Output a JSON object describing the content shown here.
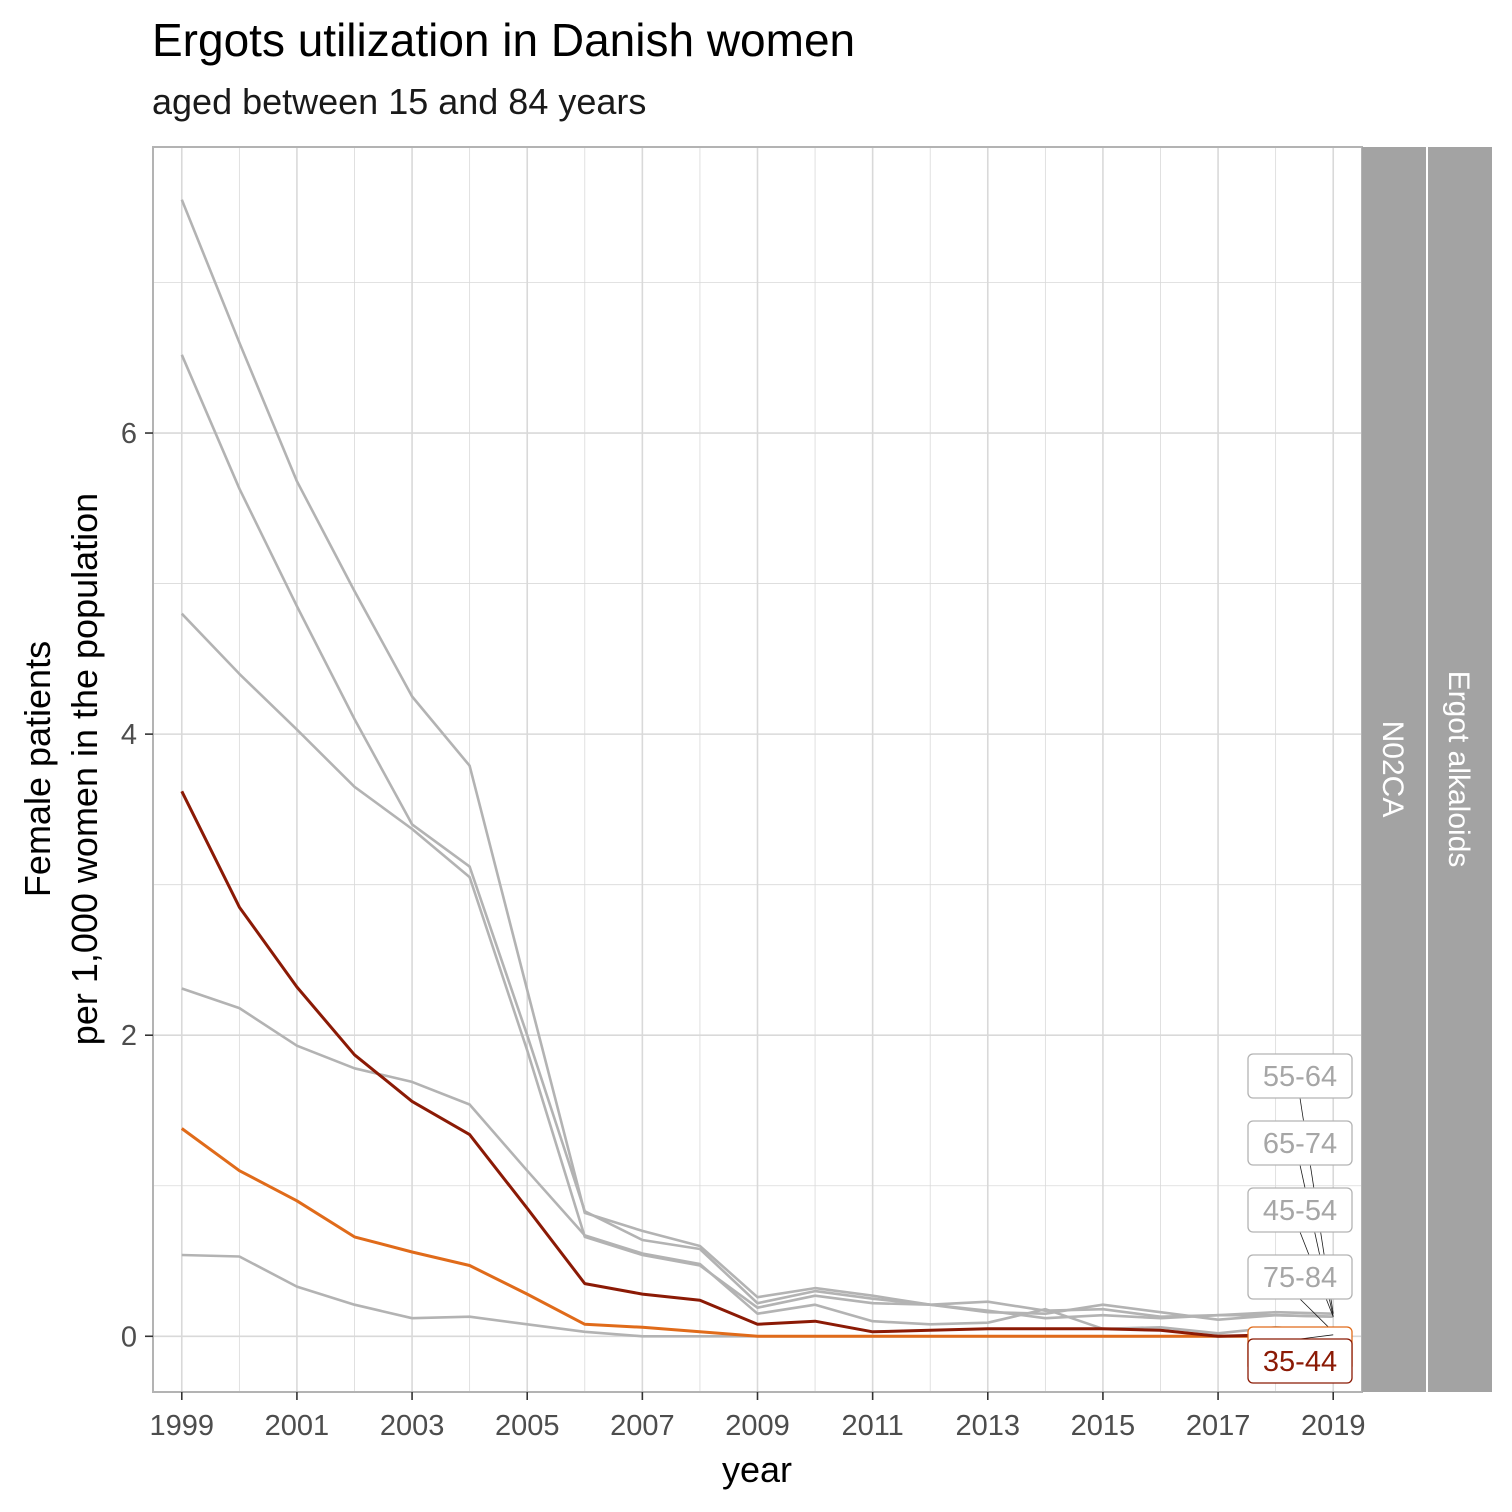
{
  "chart_data": {
    "type": "line",
    "title": "Ergots utilization in Danish women",
    "subtitle": "aged between 15 and 84 years",
    "xlabel": "year",
    "ylabel_line1": "Female patients",
    "ylabel_line2": "per 1,000 women in the population",
    "strip_labels": [
      "N02CA",
      "Ergot alkaloids"
    ],
    "xlim": [
      1998.5,
      2019.5
    ],
    "ylim": [
      -0.37,
      7.9
    ],
    "x_ticks": [
      1999,
      2001,
      2003,
      2005,
      2007,
      2009,
      2011,
      2013,
      2015,
      2017,
      2019
    ],
    "y_ticks": [
      0,
      2,
      4,
      6
    ],
    "grid": true,
    "x": [
      1999,
      2000,
      2001,
      2002,
      2003,
      2004,
      2005,
      2006,
      2007,
      2008,
      2009,
      2010,
      2011,
      2012,
      2013,
      2014,
      2015,
      2016,
      2017,
      2018,
      2019
    ],
    "series": [
      {
        "name": "55-64",
        "color": "#b3b3b3",
        "highlight": false,
        "values": [
          7.55,
          6.6,
          5.68,
          4.95,
          4.25,
          3.79,
          2.3,
          0.82,
          0.7,
          0.6,
          0.26,
          0.32,
          0.27,
          0.21,
          0.17,
          0.12,
          0.14,
          0.12,
          0.14,
          0.16,
          0.15
        ]
      },
      {
        "name": "65-74",
        "color": "#b3b3b3",
        "highlight": false,
        "values": [
          6.52,
          5.63,
          4.85,
          4.1,
          3.4,
          3.12,
          2.0,
          0.83,
          0.64,
          0.58,
          0.22,
          0.3,
          0.25,
          0.21,
          0.16,
          0.15,
          0.21,
          0.16,
          0.11,
          0.14,
          0.13
        ]
      },
      {
        "name": "45-54",
        "color": "#b3b3b3",
        "highlight": false,
        "values": [
          4.8,
          4.4,
          4.03,
          3.65,
          3.37,
          3.05,
          1.9,
          0.66,
          0.54,
          0.47,
          0.19,
          0.27,
          0.22,
          0.21,
          0.23,
          0.17,
          0.18,
          0.13,
          0.14,
          0.14,
          0.13
        ]
      },
      {
        "name": "75-84",
        "color": "#b3b3b3",
        "highlight": false,
        "values": [
          2.31,
          2.18,
          1.93,
          1.78,
          1.69,
          1.54,
          1.1,
          0.67,
          0.55,
          0.48,
          0.15,
          0.21,
          0.1,
          0.08,
          0.09,
          0.18,
          0.05,
          0.06,
          0.02,
          0.06,
          0.03
        ]
      },
      {
        "name": "",
        "color": "#b3b3b3",
        "highlight": false,
        "values": [
          0.54,
          0.53,
          0.33,
          0.21,
          0.12,
          0.13,
          0.08,
          0.03,
          0.0,
          0.0,
          0.0,
          0.0,
          0.0,
          0.0,
          0.0,
          0.0,
          0.0,
          0.0,
          0.0,
          0.0,
          0.0
        ]
      },
      {
        "name": "",
        "color": "#e06b1a",
        "highlight": true,
        "values": [
          1.38,
          1.1,
          0.9,
          0.66,
          0.56,
          0.47,
          0.28,
          0.08,
          0.06,
          0.03,
          0.0,
          0.0,
          0.0,
          0.0,
          0.0,
          0.0,
          0.0,
          0.0,
          0.0,
          0.0,
          0.0
        ]
      },
      {
        "name": "35-44",
        "color": "#8b1a05",
        "highlight": true,
        "values": [
          3.62,
          2.85,
          2.32,
          1.87,
          1.56,
          1.34,
          0.85,
          0.35,
          0.28,
          0.24,
          0.08,
          0.1,
          0.03,
          0.04,
          0.05,
          0.05,
          0.05,
          0.04,
          0.0,
          0.01,
          0.01
        ]
      }
    ]
  },
  "colors": {
    "grid": "#d9d9d9",
    "panel_border": "#b3b3b3",
    "strip_fill": "#a3a3a3",
    "muted_line": "#b3b3b3",
    "orange_line": "#e06b1a",
    "darkred_line": "#8b1a05"
  }
}
